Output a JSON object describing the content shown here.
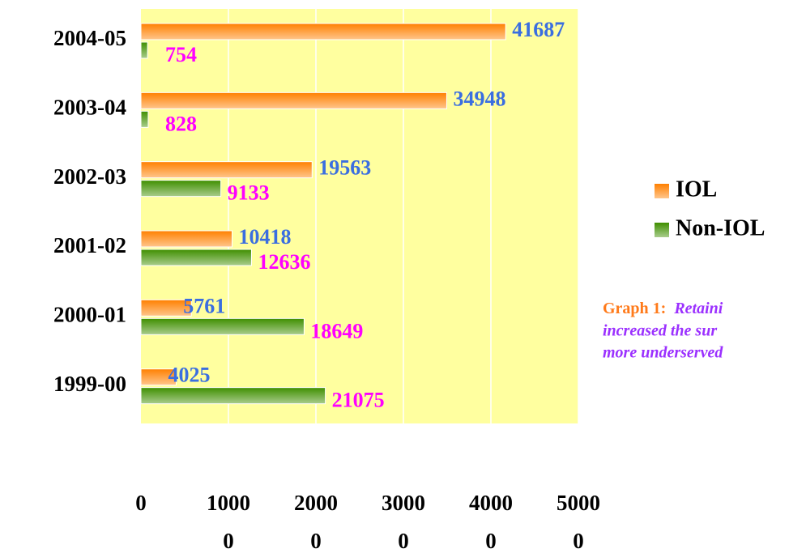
{
  "chart_data": {
    "type": "hbar",
    "categories": [
      "2004-05",
      "2003-04",
      "2002-03",
      "2001-02",
      "2000-01",
      "1999-00"
    ],
    "series": [
      {
        "name": "IOL",
        "color": "#ff8000",
        "label_color": "#3a6ee0",
        "values": [
          41687,
          34948,
          19563,
          10418,
          5761,
          4025
        ]
      },
      {
        "name": "Non-IOL",
        "color": "#3f8f00",
        "label_color": "#ff00ff",
        "values": [
          754,
          828,
          9133,
          12636,
          18649,
          21075
        ]
      }
    ],
    "xlim": [
      0,
      50000
    ],
    "xticks": [
      0,
      10000,
      20000,
      30000,
      40000,
      50000
    ],
    "grid": true,
    "legend": "right",
    "background": "#ffff9f",
    "caption": {
      "label": "Graph 1:",
      "lines": [
        "Retaini",
        "increased the sur",
        "more underserved"
      ]
    }
  }
}
